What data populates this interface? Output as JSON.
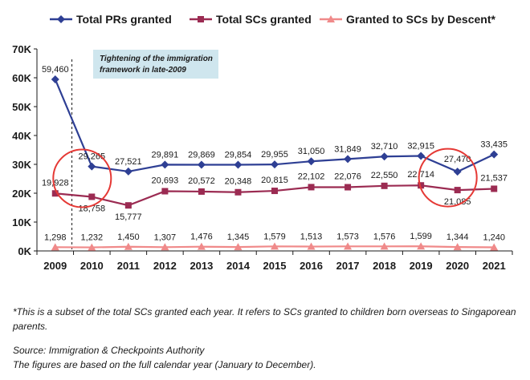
{
  "chart_data": {
    "type": "line",
    "x": [
      "2009",
      "2010",
      "2011",
      "2012",
      "2013",
      "2014",
      "2015",
      "2016",
      "2017",
      "2018",
      "2019",
      "2020",
      "2021"
    ],
    "ylim": [
      0,
      70000
    ],
    "yticks": [
      "0K",
      "10K",
      "20K",
      "30K",
      "40K",
      "50K",
      "60K",
      "70K"
    ],
    "grid": false,
    "legend_position": "top",
    "series": [
      {
        "name": "Total PRs granted",
        "color": "#2e3f94",
        "marker": "diamond",
        "values": [
          59460,
          29265,
          27521,
          29891,
          29869,
          29854,
          29955,
          31050,
          31849,
          32710,
          32915,
          27470,
          33435
        ],
        "labels": [
          "59,460",
          "29,265",
          "27,521",
          "29,891",
          "29,869",
          "29,854",
          "29,955",
          "31,050",
          "31,849",
          "32,710",
          "32,915",
          "27,470",
          "33,435"
        ]
      },
      {
        "name": "Total SCs granted",
        "color": "#9b2b52",
        "marker": "square",
        "values": [
          19928,
          18758,
          15777,
          20693,
          20572,
          20348,
          20815,
          22102,
          22076,
          22550,
          22714,
          21085,
          21537
        ],
        "labels": [
          "19,928",
          "18,758",
          "15,777",
          "20,693",
          "20,572",
          "20,348",
          "20,815",
          "22,102",
          "22,076",
          "22,550",
          "22,714",
          "21,085",
          "21,537"
        ]
      },
      {
        "name": "Granted to SCs by Descent*",
        "color": "#f08a8a",
        "marker": "triangle",
        "values": [
          1298,
          1232,
          1450,
          1307,
          1476,
          1345,
          1579,
          1513,
          1573,
          1576,
          1599,
          1344,
          1240
        ],
        "labels": [
          "1,298",
          "1,232",
          "1,450",
          "1,307",
          "1,476",
          "1,345",
          "1,579",
          "1,513",
          "1,573",
          "1,576",
          "1,599",
          "1,344",
          "1,240"
        ]
      }
    ],
    "annotation": {
      "lines": [
        "Tightening of the immigration",
        "framework in late-2009"
      ],
      "box_color": "#cfe6ee",
      "marker_line": "dashed"
    },
    "highlight_color": "#e53935",
    "highlight_years": [
      "2010",
      "2020"
    ]
  },
  "footnote": "*This is a subset of the total SCs granted each year. It refers to SCs granted to children born overseas to Singaporean parents.",
  "source": "Source: Immigration & Checkpoints Authority",
  "figures_note": "The figures are based on the full calendar year (January to December)."
}
